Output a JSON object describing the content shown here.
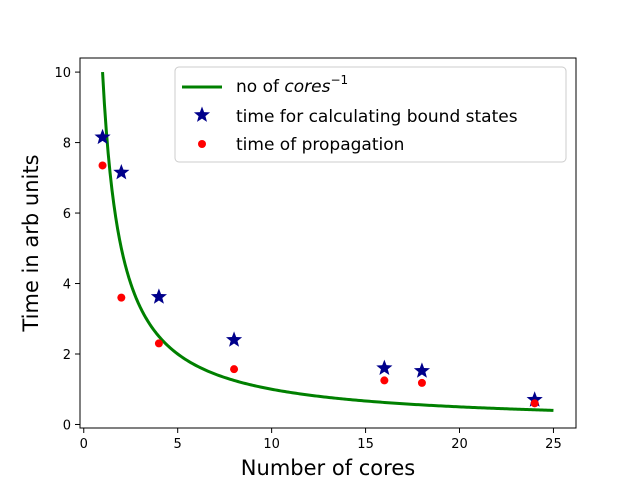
{
  "chart_data": {
    "type": "scatter",
    "title": "",
    "xlabel": "Number of cores",
    "ylabel": "Time in arb units",
    "xlim": [
      -0.2,
      26.2
    ],
    "ylim": [
      -0.1,
      10.4
    ],
    "xticks": [
      0,
      5,
      10,
      15,
      20,
      25
    ],
    "yticks": [
      0,
      2,
      4,
      6,
      8,
      10
    ],
    "grid": false,
    "legend_position": "top-right",
    "curve": {
      "name_prefix": "no of ",
      "name_base": "cores",
      "name_exponent": "−1",
      "formula": "10 / x",
      "x_range": [
        1,
        25
      ],
      "color": "#008000"
    },
    "series": [
      {
        "name": "time for calculating bound states",
        "marker": "star",
        "color": "#00008b",
        "x": [
          1,
          2,
          4,
          8,
          16,
          18,
          24
        ],
        "y": [
          8.15,
          7.15,
          3.62,
          2.4,
          1.6,
          1.52,
          0.7
        ]
      },
      {
        "name": "time of propagation",
        "marker": "circle",
        "color": "#ff0000",
        "x": [
          1,
          2,
          4,
          8,
          16,
          18,
          24
        ],
        "y": [
          7.35,
          3.6,
          2.3,
          1.57,
          1.25,
          1.18,
          0.6
        ]
      }
    ]
  }
}
